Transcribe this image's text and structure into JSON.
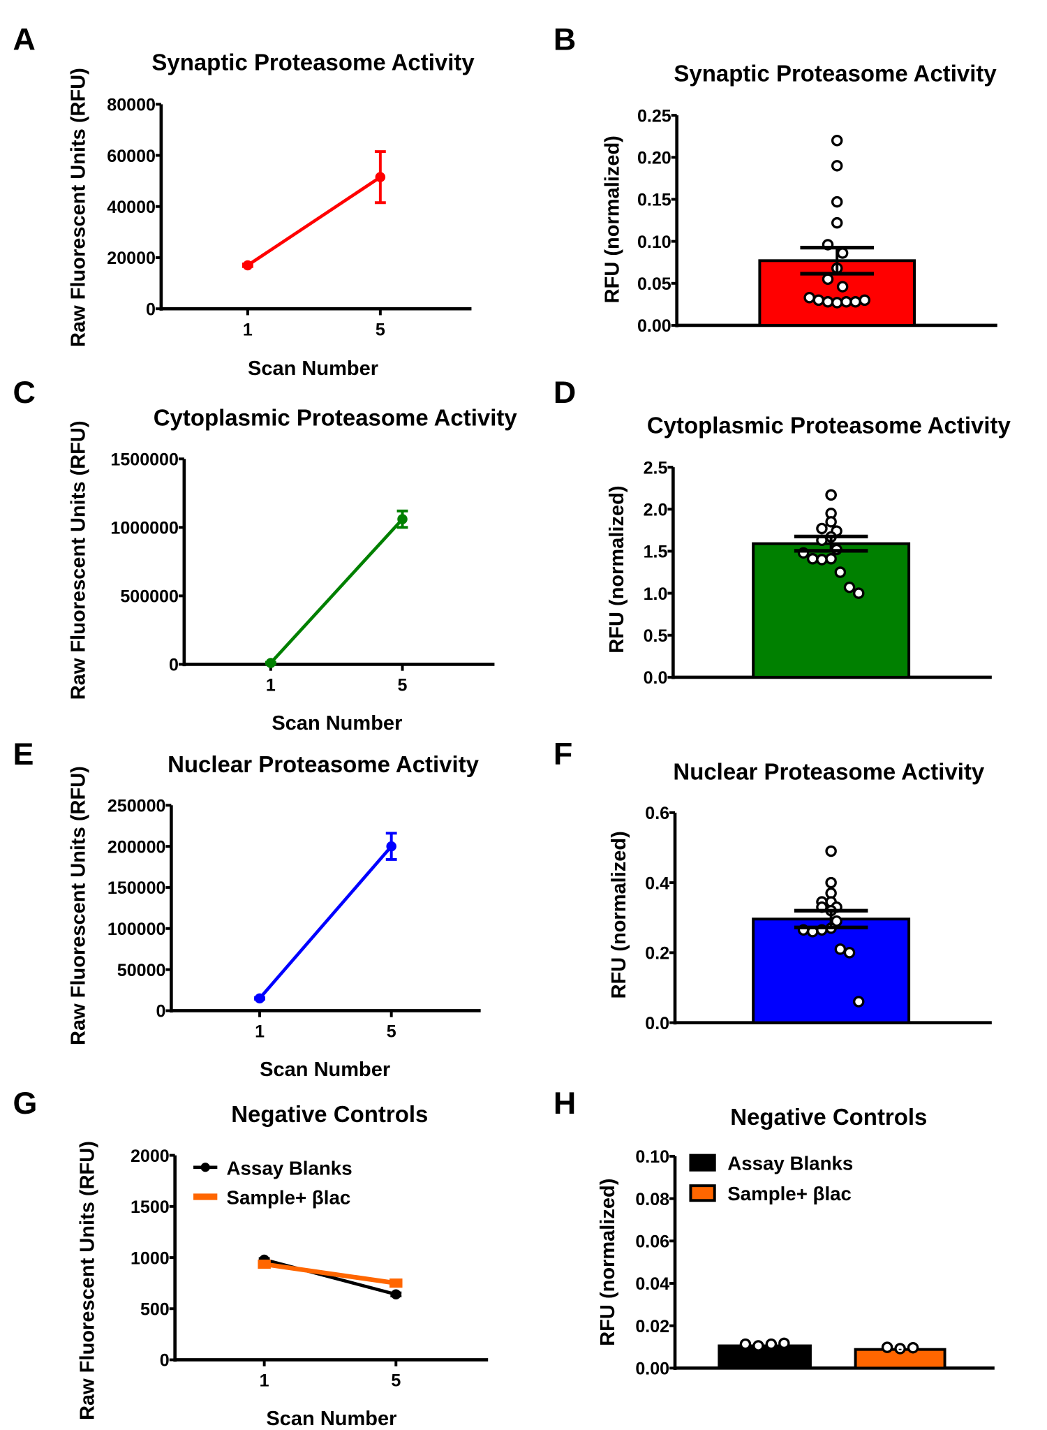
{
  "chart_data": [
    {
      "panel": "A",
      "type": "line",
      "title": "Synaptic Proteasome Activity",
      "xlabel": "Scan Number",
      "ylabel": "Raw Fluorescent Units (RFU)",
      "ylim": [
        0,
        80000
      ],
      "yticks": [
        "0",
        "20000",
        "40000",
        "60000",
        "80000"
      ],
      "xticks": [
        "1",
        "5"
      ],
      "series": [
        {
          "name": "Synaptic",
          "color": "#ff0000",
          "x": [
            1,
            5
          ],
          "y": [
            17000,
            51500
          ],
          "err": [
            500,
            10000
          ]
        }
      ]
    },
    {
      "panel": "B",
      "type": "bar",
      "title": "Synaptic Proteasome Activity",
      "ylabel": "RFU (normalized)",
      "ylim": [
        0,
        0.25
      ],
      "yticks": [
        "0.00",
        "0.05",
        "0.10",
        "0.15",
        "0.20",
        "0.25"
      ],
      "bars": [
        {
          "name": "Synaptic",
          "color": "#ff0000",
          "value": 0.077,
          "sem": 0.0155,
          "points": [
            0.22,
            0.19,
            0.147,
            0.122,
            0.096,
            0.086,
            0.068,
            0.055,
            0.046,
            0.033,
            0.03,
            0.028,
            0.027,
            0.028,
            0.028,
            0.03
          ]
        }
      ]
    },
    {
      "panel": "C",
      "type": "line",
      "title": "Cytoplasmic Proteasome Activity",
      "xlabel": "Scan Number",
      "ylabel": "Raw Fluorescent Units (RFU)",
      "ylim": [
        0,
        1500000
      ],
      "yticks": [
        "0",
        "500000",
        "1000000",
        "1500000"
      ],
      "xticks": [
        "1",
        "5"
      ],
      "series": [
        {
          "name": "Cytoplasmic",
          "color": "#008000",
          "x": [
            1,
            5
          ],
          "y": [
            10000,
            1060000
          ],
          "err": [
            5000,
            60000
          ]
        }
      ]
    },
    {
      "panel": "D",
      "type": "bar",
      "title": "Cytoplasmic Proteasome Activity",
      "ylabel": "RFU (normalized)",
      "ylim": [
        0,
        2.5
      ],
      "yticks": [
        "0.0",
        "0.5",
        "1.0",
        "1.5",
        "2.0",
        "2.5"
      ],
      "bars": [
        {
          "name": "Cytoplasmic",
          "color": "#008000",
          "value": 1.59,
          "sem": 0.085,
          "points": [
            2.17,
            2.17,
            1.95,
            1.85,
            1.77,
            1.74,
            1.67,
            1.63,
            1.52,
            1.48,
            1.41,
            1.4,
            1.41,
            1.25,
            1.07,
            1.0
          ]
        }
      ]
    },
    {
      "panel": "E",
      "type": "line",
      "title": "Nuclear Proteasome Activity",
      "xlabel": "Scan Number",
      "ylabel": "Raw Fluorescent Units (RFU)",
      "ylim": [
        0,
        250000
      ],
      "yticks": [
        "0",
        "50000",
        "100000",
        "150000",
        "200000",
        "250000"
      ],
      "xticks": [
        "1",
        "5"
      ],
      "series": [
        {
          "name": "Nuclear",
          "color": "#0000ff",
          "x": [
            1,
            5
          ],
          "y": [
            15000,
            200000
          ],
          "err": [
            1000,
            16000
          ]
        }
      ]
    },
    {
      "panel": "F",
      "type": "bar",
      "title": "Nuclear Proteasome Activity",
      "ylabel": "RFU (normalized)",
      "ylim": [
        0,
        0.6
      ],
      "yticks": [
        "0.0",
        "0.2",
        "0.4",
        "0.6"
      ],
      "bars": [
        {
          "name": "Nuclear",
          "color": "#0000ff",
          "value": 0.296,
          "sem": 0.024,
          "points": [
            0.49,
            0.4,
            0.37,
            0.345,
            0.345,
            0.33,
            0.32,
            0.33,
            0.29,
            0.265,
            0.26,
            0.265,
            0.27,
            0.21,
            0.2,
            0.06
          ]
        }
      ]
    },
    {
      "panel": "G",
      "type": "line",
      "title": "Negative Controls",
      "xlabel": "Scan Number",
      "ylabel": "Raw Fluorescent Units (RFU)",
      "ylim": [
        0,
        2000
      ],
      "yticks": [
        "0",
        "500",
        "1000",
        "1500",
        "2000"
      ],
      "xticks": [
        "1",
        "5"
      ],
      "legend": "top-left",
      "series": [
        {
          "name": "Assay Blanks",
          "color": "#000000",
          "x": [
            1,
            5
          ],
          "y": [
            980,
            640
          ],
          "err": [
            10,
            15
          ]
        },
        {
          "name": "Sample+ βlac",
          "color": "#ff6600",
          "x": [
            1,
            5
          ],
          "y": [
            935,
            750
          ],
          "err": [
            20,
            25
          ]
        }
      ]
    },
    {
      "panel": "H",
      "type": "bar",
      "title": "Negative Controls",
      "ylabel": "RFU (normalized)",
      "ylim": [
        0,
        0.1
      ],
      "yticks": [
        "0.00",
        "0.02",
        "0.04",
        "0.06",
        "0.08",
        "0.10"
      ],
      "legend": "top-left",
      "bars": [
        {
          "name": "Assay Blanks",
          "color": "#000000",
          "value": 0.0105,
          "sem": 0.0003,
          "points": [
            0.0113,
            0.0105,
            0.0113,
            0.0117
          ]
        },
        {
          "name": "Sample+ βlac",
          "color": "#ff6600",
          "value": 0.0088,
          "sem": 0.0003,
          "points": [
            0.0098,
            0.0092,
            0.0096
          ]
        }
      ]
    }
  ]
}
